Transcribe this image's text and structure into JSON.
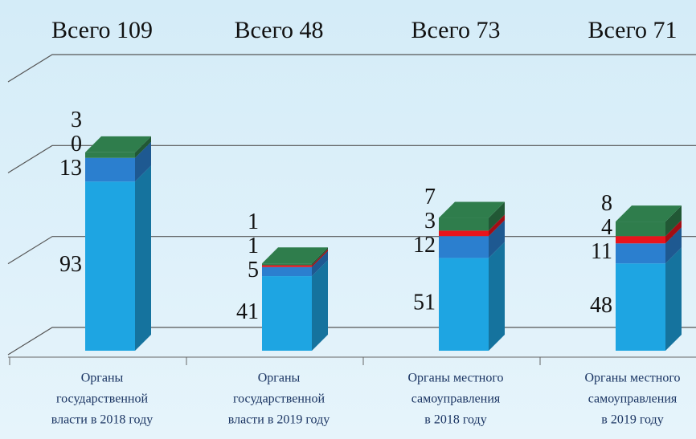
{
  "chart_data": {
    "type": "bar",
    "stacked": true,
    "totals": [
      "Всего 109",
      "Всего 48",
      "Всего 73",
      "Всего 71"
    ],
    "categories": [
      [
        "Органы",
        "государственной",
        "власти в 2018 году"
      ],
      [
        "Органы",
        "государственной",
        "власти в 2019 году"
      ],
      [
        "Органы местного",
        "самоуправления",
        "в 2018 году"
      ],
      [
        "Органы местного",
        "самоуправления",
        "в 2019 году"
      ]
    ],
    "series": [
      {
        "color": "#1ea5e2",
        "values": [
          93,
          41,
          51,
          48
        ]
      },
      {
        "color": "#2b7fcf",
        "values": [
          13,
          5,
          12,
          11
        ]
      },
      {
        "color": "#e8141c",
        "values": [
          0,
          1,
          3,
          4
        ]
      },
      {
        "color": "#2f7d4c",
        "values": [
          3,
          1,
          7,
          8
        ]
      }
    ],
    "ylim": [
      0,
      150
    ],
    "yticks": [
      0,
      50,
      100,
      150
    ],
    "grid": true
  }
}
